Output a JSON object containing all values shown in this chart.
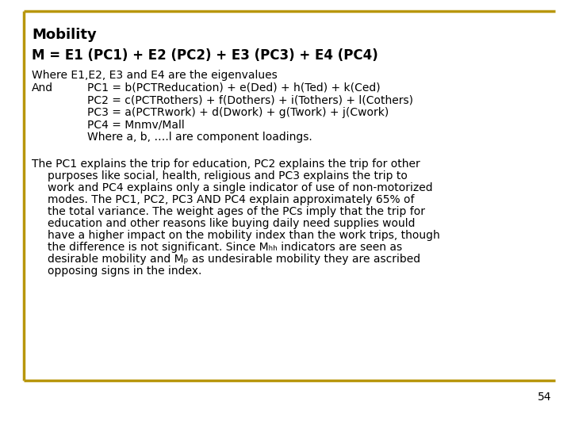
{
  "title": "Mobility",
  "border_color": "#b8960c",
  "background_color": "#ffffff",
  "text_color": "#000000",
  "page_number": "54",
  "formula_line": "M = E1 (PC1) + E2 (PC2) + E3 (PC3) + E4 (PC4)",
  "where_line": "Where E1,E2, E3 and E4 are the eigenvalues",
  "and_label": "And",
  "pc_lines": [
    "PC1 = b(PCTReducation) + e(Ded) + h(Ted) + k(Ced)",
    "PC2 = c(PCTRothers) + f(Dothers) + i(Tothers) + l(Cothers)",
    "PC3 = a(PCTRwork) + d(Dwork) + g(Twork) + j(Cwork)",
    "PC4 = Mnmv/Mall",
    "Where a, b, ….l are component loadings."
  ],
  "para_lines": [
    "The PC1 explains the trip for education, PC2 explains the trip for other",
    "purposes like social, health, religious and PC3 explains the trip to",
    "work and PC4 explains only a single indicator of use of non-motorized",
    "modes. The PC1, PC2, PC3 AND PC4 explain approximately 65% of",
    "the total variance. The weight ages of the PCs imply that the trip for",
    "education and other reasons like buying daily need supplies would",
    "have a higher impact on the mobility index than the work trips, though",
    "the difference is not significant. Since Mₕₕ indicators are seen as",
    "desirable mobility and Mₚ as undesirable mobility they are ascribed",
    "opposing signs in the index."
  ],
  "para_indent_first": false,
  "para_indent_rest": true
}
